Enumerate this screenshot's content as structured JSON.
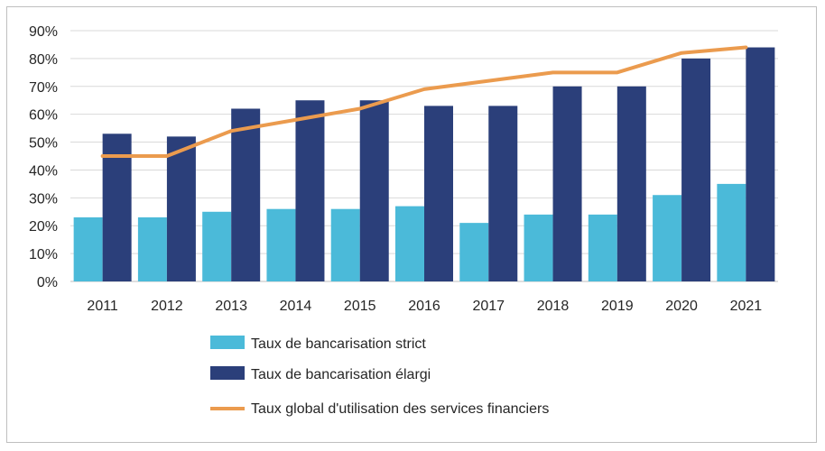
{
  "chart_data": {
    "type": "bar",
    "title": "",
    "xlabel": "",
    "ylabel": "",
    "categories": [
      "2011",
      "2012",
      "2013",
      "2014",
      "2015",
      "2016",
      "2017",
      "2018",
      "2019",
      "2020",
      "2021"
    ],
    "ylim": [
      0,
      90
    ],
    "yticks": [
      0,
      10,
      20,
      30,
      40,
      50,
      60,
      70,
      80,
      90
    ],
    "ytick_labels": [
      "0%",
      "10%",
      "20%",
      "30%",
      "40%",
      "50%",
      "60%",
      "70%",
      "80%",
      "90%"
    ],
    "grid": true,
    "legend_position": "bottom",
    "series": [
      {
        "name": "Taux de bancarisation strict",
        "kind": "bar",
        "color": "#4bbad9",
        "values": [
          23,
          23,
          25,
          26,
          26,
          27,
          21,
          24,
          24,
          31,
          35
        ]
      },
      {
        "name": "Taux de bancarisation élargi",
        "kind": "bar",
        "color": "#2b3f7a",
        "values": [
          53,
          52,
          62,
          65,
          65,
          63,
          63,
          70,
          70,
          80,
          84
        ]
      },
      {
        "name": "Taux global d'utilisation des services financiers",
        "kind": "line",
        "color": "#eb9b4e",
        "values": [
          45,
          45,
          54,
          58,
          62,
          69,
          72,
          75,
          75,
          82,
          84
        ]
      }
    ]
  }
}
